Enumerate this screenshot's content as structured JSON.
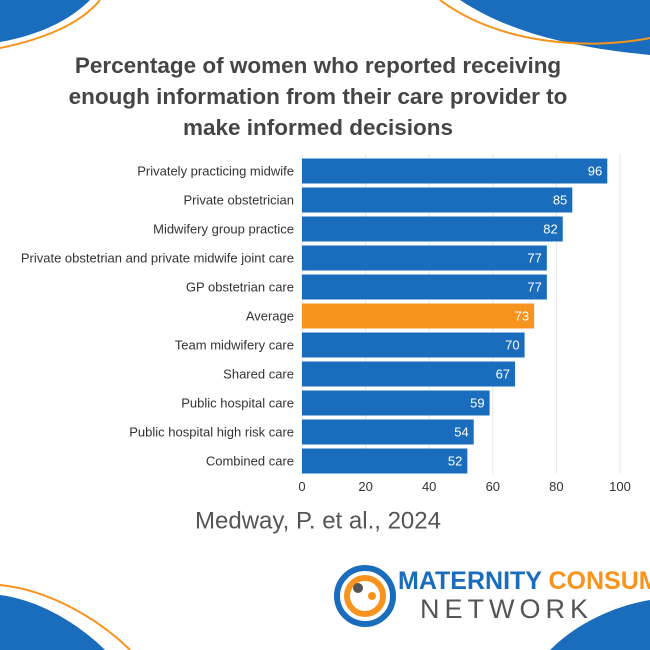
{
  "chart_data": {
    "type": "hbar",
    "title": "Percentage of women who reported receiving enough information from their care provider to make informed decisions",
    "categories": [
      "Privately practicing midwife",
      "Private obstetrician",
      "Midwifery group practice",
      "Private obstetrian and private midwife joint care",
      "GP obstetrian care",
      "Average",
      "Team midwifery care",
      "Shared care",
      "Public hospital care",
      "Public hospital high risk care",
      "Combined care"
    ],
    "values": [
      96,
      85,
      82,
      77,
      77,
      73,
      70,
      67,
      59,
      54,
      52
    ],
    "colors": [
      "#1a6dbd",
      "#1a6dbd",
      "#1a6dbd",
      "#1a6dbd",
      "#1a6dbd",
      "#f7941d",
      "#1a6dbd",
      "#1a6dbd",
      "#1a6dbd",
      "#1a6dbd",
      "#1a6dbd"
    ],
    "xlim": [
      0,
      100
    ],
    "xticks": [
      0,
      20,
      40,
      60,
      80,
      100
    ],
    "grid": true
  },
  "source": "Medway, P. et al., 2024",
  "logo": {
    "line1": [
      "MATERNITY",
      "CONSUMER"
    ],
    "line2": "NETWORK"
  }
}
